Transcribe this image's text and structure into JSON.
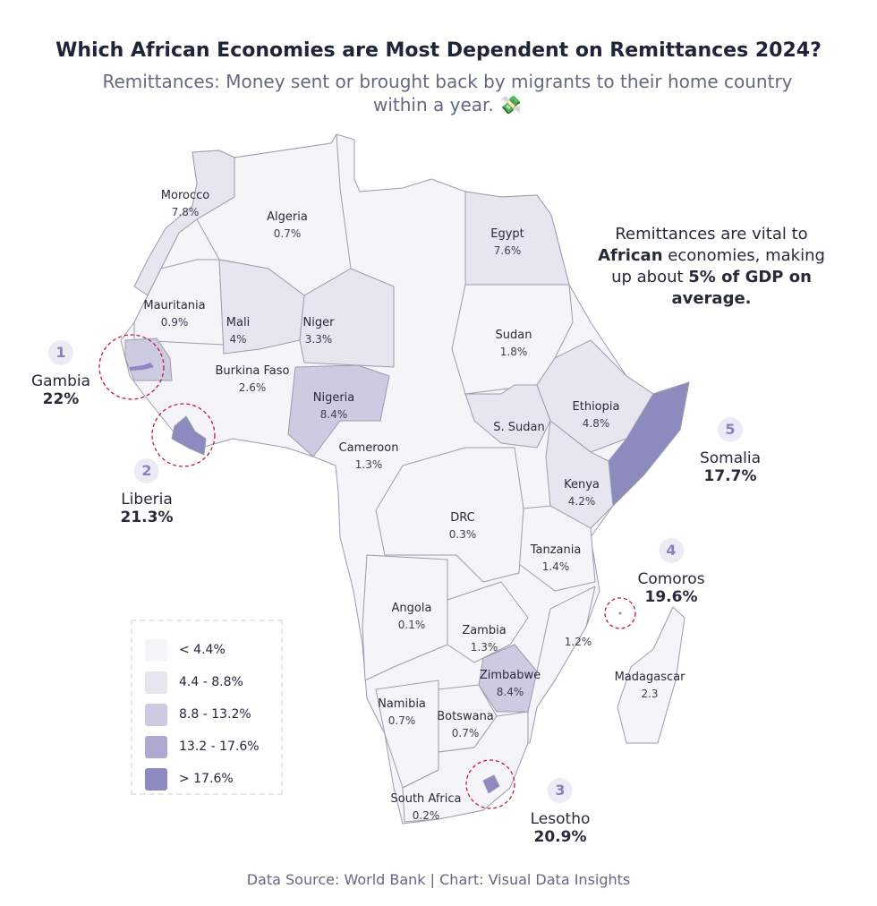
{
  "title": "Which African Economies are Most Dependent on Remittances 2024?",
  "subtitle": "Remittances: Money sent or brought back by migrants to their home country within a year. 💸",
  "note": {
    "pre": "Remittances are vital to ",
    "bold1": "African",
    "mid": " economies, making up about ",
    "bold2": "5% of GDP on average."
  },
  "colors": {
    "lt4_4": "#f5f4f9",
    "4_4_8_8": "#e6e5f0",
    "8_8_13_2": "#cccbe2",
    "13_2_17_6": "#adaad2",
    "gt17_6": "#8d8ac0",
    "border": "#9c9cae",
    "circle": "#c8173f"
  },
  "legend": [
    {
      "label": "< 4.4%",
      "color": "#f5f4f9"
    },
    {
      "label": "4.4 - 8.8%",
      "color": "#e6e5f0"
    },
    {
      "label": "8.8 - 13.2%",
      "color": "#cccbe2"
    },
    {
      "label": "13.2 - 17.6%",
      "color": "#adaad2"
    },
    {
      "label": "> 17.6%",
      "color": "#8d8ac0"
    }
  ],
  "countries": [
    {
      "name": "Morocco",
      "value": "7.8%"
    },
    {
      "name": "Algeria",
      "value": "0.7%"
    },
    {
      "name": "Egypt",
      "value": "7.6%"
    },
    {
      "name": "Mauritania",
      "value": "0.9%"
    },
    {
      "name": "Mali",
      "value": "4%"
    },
    {
      "name": "Niger",
      "value": "3.3%"
    },
    {
      "name": "Sudan",
      "value": "1.8%"
    },
    {
      "name": "Burkina Faso",
      "value": "2.6%"
    },
    {
      "name": "Nigeria",
      "value": "8.4%"
    },
    {
      "name": "S. Sudan",
      "value": ""
    },
    {
      "name": "Ethiopia",
      "value": "4.8%"
    },
    {
      "name": "Cameroon",
      "value": "1.3%"
    },
    {
      "name": "Kenya",
      "value": "4.2%"
    },
    {
      "name": "DRC",
      "value": "0.3%"
    },
    {
      "name": "Tanzania",
      "value": "1.4%"
    },
    {
      "name": "Angola",
      "value": "0.1%"
    },
    {
      "name": "Zambia",
      "value": "1.3%"
    },
    {
      "name": "",
      "value": "1.2%"
    },
    {
      "name": "Zimbabwe",
      "value": "8.4%"
    },
    {
      "name": "Madagascar",
      "value": "2.3"
    },
    {
      "name": "Namibia",
      "value": "0.7%"
    },
    {
      "name": "Botswana",
      "value": "0.7%"
    },
    {
      "name": "South Africa",
      "value": "0.2%"
    }
  ],
  "callouts": [
    {
      "rank": "1",
      "name": "Gambia",
      "value": "22%"
    },
    {
      "rank": "2",
      "name": "Liberia",
      "value": "21.3%"
    },
    {
      "rank": "3",
      "name": "Lesotho",
      "value": "20.9%"
    },
    {
      "rank": "4",
      "name": "Comoros",
      "value": "19.6%"
    },
    {
      "rank": "5",
      "name": "Somalia",
      "value": "17.7%"
    }
  ],
  "source": "Data Source: World Bank | Chart: Visual Data Insights"
}
